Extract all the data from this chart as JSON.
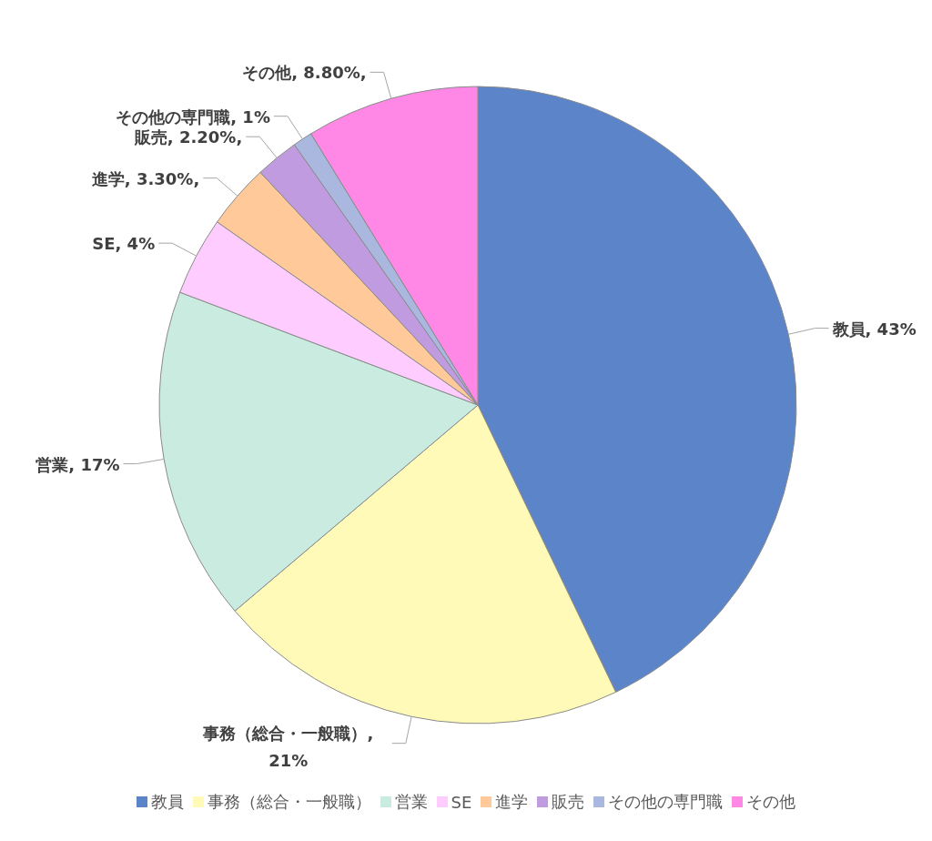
{
  "chart_data": {
    "type": "pie",
    "categories": [
      "教員",
      "事務（総合・一般職）",
      "営業",
      "SE",
      "進学",
      "販売",
      "その他の専門職",
      "その他"
    ],
    "values": [
      43,
      21,
      17,
      4,
      3.3,
      2.2,
      1,
      8.8
    ],
    "colors": [
      "#5b84c9",
      "#fffab8",
      "#c9ebe0",
      "#ffccff",
      "#ffc999",
      "#c09be0",
      "#aab8e0",
      "#ff88e6"
    ],
    "value_labels": [
      "教員, 43%",
      "事務（総合・一般職）, 21%",
      "営業, 17%",
      "SE, 4%",
      "進学, 3.30%,",
      "販売, 2.20%,",
      "その他の専門職, 1%",
      "その他, 8.80%,"
    ],
    "legend": "bottom"
  }
}
